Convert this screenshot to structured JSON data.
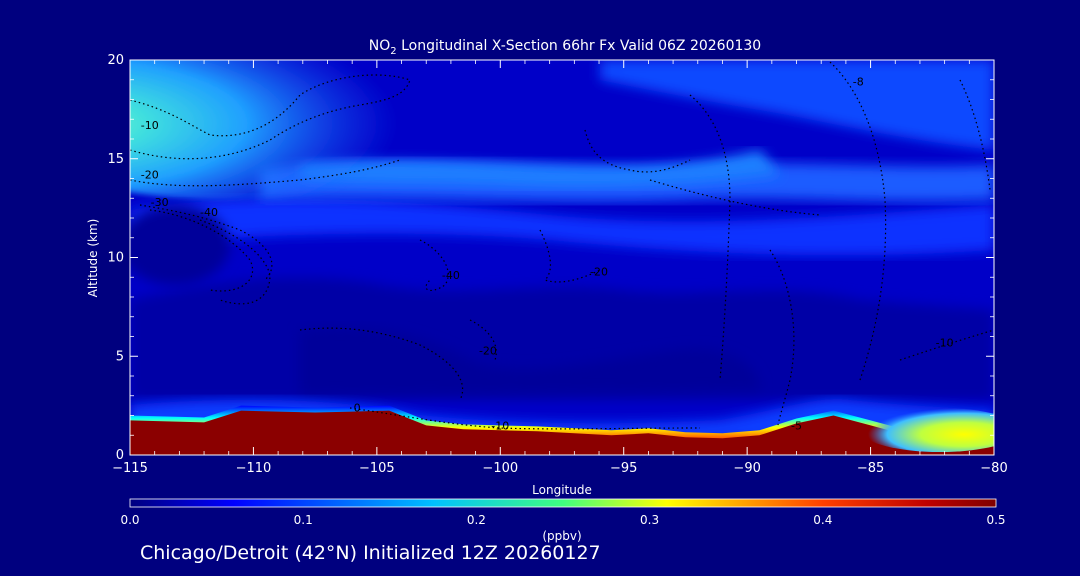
{
  "chart_data": {
    "type": "heatmap",
    "title": {
      "prefix": "NO",
      "subscript": "2",
      "rest": " Longitudinal X-Section 66hr  Fx Valid 06Z 20260130"
    },
    "xlabel": "Longitude",
    "ylabel": "Altitude (km)",
    "xlim": [
      -115,
      -80
    ],
    "ylim": [
      0,
      20
    ],
    "x_ticks": [
      -115,
      -110,
      -105,
      -100,
      -95,
      -90,
      -85,
      -80
    ],
    "x_tick_labels": [
      "−115",
      "−110",
      "−105",
      "−100",
      "−95",
      "−90",
      "−85",
      "−80"
    ],
    "y_ticks": [
      0,
      5,
      10,
      15,
      20
    ],
    "y_tick_labels": [
      "0",
      "5",
      "10",
      "15",
      "20"
    ],
    "colorbar": {
      "label": "(ppbv)",
      "range": [
        0.0,
        0.5
      ],
      "ticks": [
        0.0,
        0.1,
        0.2,
        0.3,
        0.4,
        0.5
      ],
      "tick_labels": [
        "0.0",
        "0.1",
        "0.2",
        "0.3",
        "0.4",
        "0.5"
      ]
    },
    "field": {
      "variable": "NO2 mixing ratio (ppbv)",
      "longitude": [
        -115,
        -113.5,
        -112,
        -110.5,
        -109,
        -107.5,
        -106,
        -104.5,
        -103,
        -101.5,
        -100,
        -98.5,
        -97,
        -95.5,
        -94,
        -92.5,
        -91,
        -89.5,
        -88,
        -86.5,
        -85,
        -83.5,
        -82,
        -80.5,
        -80
      ],
      "terrain_km": [
        1.75,
        1.7,
        1.65,
        2.25,
        2.2,
        2.15,
        2.2,
        2.25,
        1.5,
        1.3,
        1.25,
        1.2,
        1.1,
        1.0,
        1.1,
        0.9,
        0.85,
        1.0,
        1.6,
        2.0,
        1.5,
        1.0,
        0.75,
        0.65,
        0.6
      ],
      "surface_layer_max": 0.5,
      "upper_layers": [
        {
          "name": "stratospheric maximum",
          "lon": [
            -115,
            -108
          ],
          "alt_km": [
            15.5,
            19.5
          ],
          "peak": 0.27
        },
        {
          "name": "upper-level band",
          "lon": [
            -113,
            -80
          ],
          "alt_km": [
            12.5,
            15.5
          ],
          "peak": 0.12
        },
        {
          "name": "jet-level band",
          "lon": [
            -115,
            -80
          ],
          "alt_km": [
            10.5,
            12.5
          ],
          "peak": 0.09
        },
        {
          "name": "mid-troposphere",
          "lon": [
            -115,
            -80
          ],
          "alt_km": [
            3,
            10
          ],
          "peak": 0.04
        },
        {
          "name": "eastern boundary-layer plume",
          "lon": [
            -86,
            -80
          ],
          "alt_km": [
            0.5,
            1.5
          ],
          "peak": 0.27
        }
      ]
    },
    "contours": {
      "variable": "temperature (°C)",
      "style": "dotted black",
      "labels": [
        {
          "text": "-10",
          "lon": -114.2,
          "alt": 16.5
        },
        {
          "text": "-20",
          "lon": -114.2,
          "alt": 14.0
        },
        {
          "text": "-30",
          "lon": -113.8,
          "alt": 12.6
        },
        {
          "text": "-40",
          "lon": -111.8,
          "alt": 12.1
        },
        {
          "text": "-40",
          "lon": -102.0,
          "alt": 8.9
        },
        {
          "text": "-20",
          "lon": -96.0,
          "alt": 9.1
        },
        {
          "text": "-20",
          "lon": -100.5,
          "alt": 5.1
        },
        {
          "text": "-10",
          "lon": -100.0,
          "alt": 1.3
        },
        {
          "text": "-8",
          "lon": -85.5,
          "alt": 18.7
        },
        {
          "text": "-10",
          "lon": -82.0,
          "alt": 5.5
        },
        {
          "text": "-5",
          "lon": -88.0,
          "alt": 1.3
        },
        {
          "text": "0",
          "lon": -105.8,
          "alt": 2.2
        }
      ]
    },
    "footer": "Chicago/Detroit (42°N) Initialized 12Z 20260127"
  }
}
